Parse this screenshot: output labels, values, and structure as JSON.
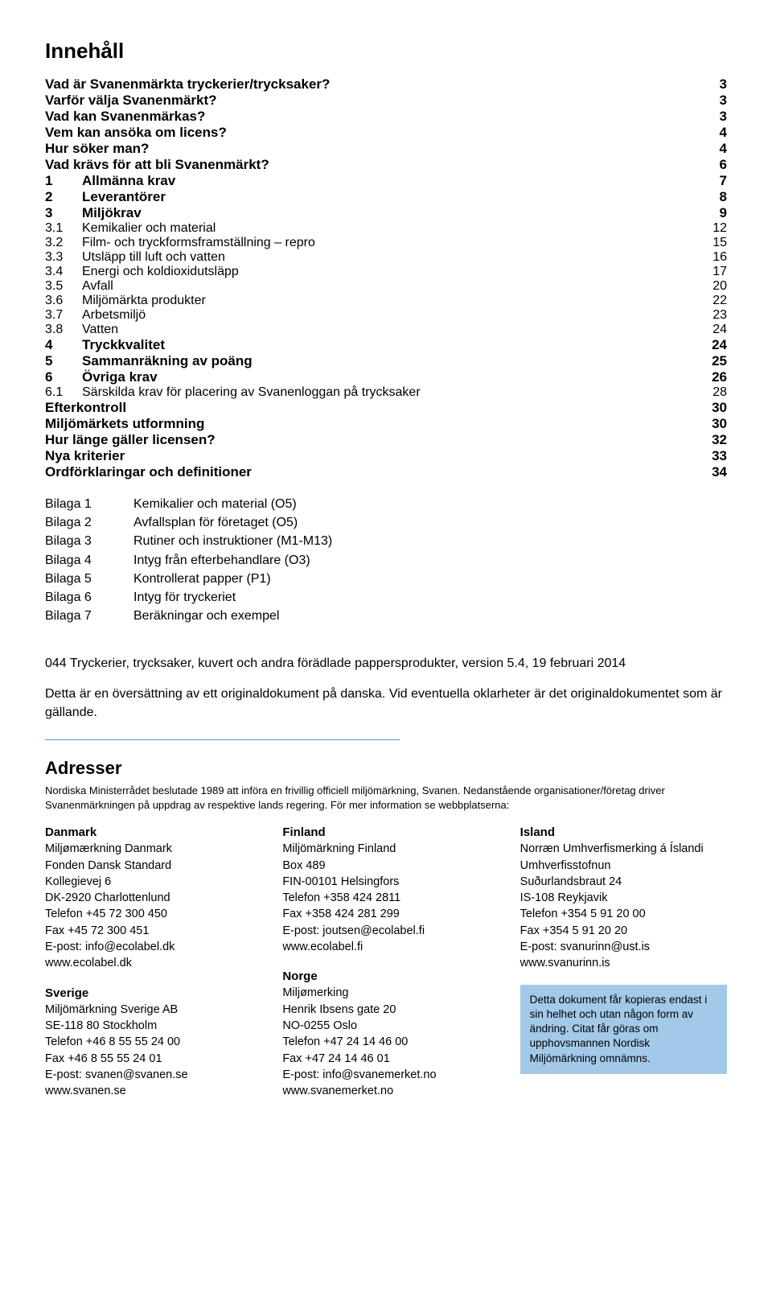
{
  "title": "Innehåll",
  "toc": [
    {
      "label": "Vad är Svanenmärkta tryckerier/trycksaker?",
      "page": "3",
      "bold": true
    },
    {
      "label": "Varför välja Svanenmärkt?",
      "page": "3",
      "bold": true
    },
    {
      "label": "Vad kan Svanenmärkas?",
      "page": "3",
      "bold": true
    },
    {
      "label": "Vem kan ansöka om licens?",
      "page": "4",
      "bold": true
    },
    {
      "label": "Hur söker man?",
      "page": "4",
      "bold": true
    },
    {
      "label": "Vad krävs för att bli Svanenmärkt?",
      "page": "6",
      "bold": true
    },
    {
      "num": "1",
      "label": "Allmänna krav",
      "page": "7",
      "bold": true
    },
    {
      "num": "2",
      "label": "Leverantörer",
      "page": "8",
      "bold": true
    },
    {
      "num": "3",
      "label": "Miljökrav",
      "page": "9",
      "bold": true
    },
    {
      "num": "3.1",
      "label": "Kemikalier och material",
      "page": "12",
      "bold": false
    },
    {
      "num": "3.2",
      "label": "Film- och tryckformsframställning – repro",
      "page": "15",
      "bold": false
    },
    {
      "num": "3.3",
      "label": "Utsläpp till luft och vatten",
      "page": "16",
      "bold": false
    },
    {
      "num": "3.4",
      "label": "Energi och koldioxidutsläpp",
      "page": "17",
      "bold": false
    },
    {
      "num": "3.5",
      "label": "Avfall",
      "page": "20",
      "bold": false
    },
    {
      "num": "3.6",
      "label": "Miljömärkta produkter",
      "page": "22",
      "bold": false
    },
    {
      "num": "3.7",
      "label": "Arbetsmiljö",
      "page": "23",
      "bold": false
    },
    {
      "num": "3.8",
      "label": "Vatten",
      "page": "24",
      "bold": false
    },
    {
      "num": "4",
      "label": "Tryckkvalitet",
      "page": "24",
      "bold": true
    },
    {
      "num": "5",
      "label": "Sammanräkning av poäng",
      "page": "25",
      "bold": true
    },
    {
      "num": "6",
      "label": "Övriga krav",
      "page": "26",
      "bold": true
    },
    {
      "num": "6.1",
      "label": "Särskilda krav för placering av Svanenloggan på trycksaker",
      "page": "28",
      "bold": false
    },
    {
      "label": "Efterkontroll",
      "page": "30",
      "bold": true
    },
    {
      "label": "Miljömärkets utformning",
      "page": "30",
      "bold": true
    },
    {
      "label": "Hur länge gäller licensen?",
      "page": "32",
      "bold": true
    },
    {
      "label": "Nya kriterier",
      "page": "33",
      "bold": true
    },
    {
      "label": "Ordförklaringar och definitioner",
      "page": "34",
      "bold": true
    }
  ],
  "bilagor": [
    {
      "num": "Bilaga 1",
      "label": "Kemikalier och material (O5)"
    },
    {
      "num": "Bilaga 2",
      "label": "Avfallsplan för företaget (O5)"
    },
    {
      "num": "Bilaga 3",
      "label": "Rutiner och instruktioner (M1-M13)"
    },
    {
      "num": "Bilaga 4",
      "label": "Intyg från efterbehandlare (O3)"
    },
    {
      "num": "Bilaga 5",
      "label": "Kontrollerat papper (P1)"
    },
    {
      "num": "Bilaga 6",
      "label": "Intyg för tryckeriet"
    },
    {
      "num": "Bilaga 7",
      "label": "Beräkningar och exempel"
    }
  ],
  "footer": {
    "line1": "044 Tryckerier, trycksaker, kuvert och andra förädlade pappersprodukter, version 5.4, 19 februari 2014",
    "line2": "Detta är en översättning av ett originaldokument på danska. Vid eventuella oklarheter är det original­dokumentet som är gällande."
  },
  "adresser_title": "Adresser",
  "adr_intro": "Nordiska Ministerrådet beslutade 1989 att införa en frivillig officiell miljömärkning, Svanen. Nedanstående organisationer/företag driver Svanenmärkningen på uppdrag av respektive lands regering. För mer information se webbplatserna:",
  "countries": {
    "dk": {
      "name": "Danmark",
      "lines": [
        "Miljømærkning Danmark",
        "Fonden Dansk Standard",
        "Kollegievej 6",
        "DK-2920  Charlottenlund",
        "Telefon +45 72 300 450",
        "Fax +45 72 300 451",
        "E-post: info@ecolabel.dk",
        "www.ecolabel.dk"
      ]
    },
    "se": {
      "name": "Sverige",
      "lines": [
        "Miljömärkning Sverige AB",
        "SE-118 80  Stockholm",
        "Telefon +46 8 55 55 24 00",
        "Fax +46 8 55 55 24 01",
        "E-post: svanen@svanen.se",
        "www.svanen.se"
      ]
    },
    "fi": {
      "name": "Finland",
      "lines": [
        "Miljömärkning Finland",
        "Box 489",
        "FIN-00101  Helsingfors",
        "Telefon +358 424 2811",
        "Fax +358 424 281 299",
        "E-post: joutsen@ecolabel.fi",
        "www.ecolabel.fi"
      ]
    },
    "no": {
      "name": "Norge",
      "lines": [
        "Miljømerking",
        "Henrik Ibsens gate 20",
        "NO-0255  Oslo",
        "Telefon +47 24 14 46 00",
        "Fax +47 24 14 46 01",
        "E-post: info@svanemerket.no",
        "www.svanemerket.no"
      ]
    },
    "is": {
      "name": "Island",
      "lines": [
        "Norræn Umhverfismerking á Íslandi",
        "Umhverfisstofnun",
        "Suðurlandsbraut 24",
        "IS-108  Reykjavik",
        "Telefon +354 5 91 20 00",
        "Fax +354 5 91 20 20",
        "E-post: svanurinn@ust.is",
        "www.svanurinn.is"
      ]
    }
  },
  "callout": "Detta dokument får kopieras endast i sin helhet och utan någon form av ändring. Citat får göras om upphovsmannen Nordisk Miljömärkning omnämns."
}
